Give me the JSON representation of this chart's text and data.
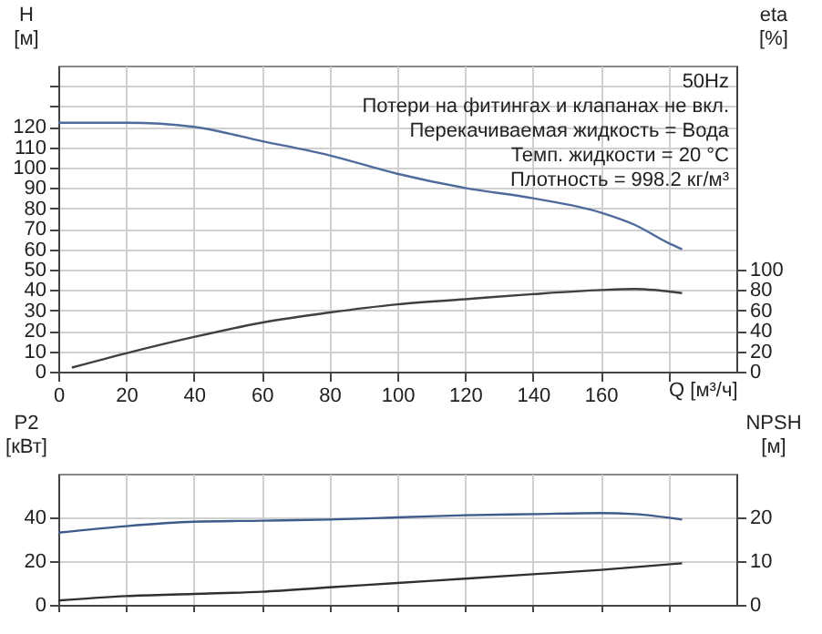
{
  "chart_data": [
    {
      "type": "line",
      "title": "50Hz",
      "annotations": [
        "Потери на фитингах и клапанах не вкл.",
        "Перекачиваемая жидкость = Вода",
        "Темп. жидкости = 20 °C",
        "Плотность = 998.2 кг/м³"
      ],
      "xlabel": "Q [м³/ч]",
      "ylabel": "H [м]",
      "y2label": "eta [%]",
      "xlim": [
        0,
        200
      ],
      "xticks": [
        0,
        20,
        40,
        60,
        80,
        100,
        120,
        140,
        160,
        {
          "value": 180,
          "label": null
        }
      ],
      "ylim": [
        0,
        150
      ],
      "yticks": [
        0,
        10,
        20,
        30,
        40,
        50,
        60,
        70,
        80,
        90,
        100,
        110,
        120,
        {
          "value": 130,
          "label": null
        },
        {
          "value": 140,
          "label": null
        }
      ],
      "y2lim": [
        0,
        300
      ],
      "y2ticks": [
        0,
        20,
        40,
        60,
        80,
        100
      ],
      "grid": true,
      "legend": false,
      "line_style": "solid",
      "series": [
        {
          "color": "#4f6a9c",
          "x": [
            0,
            20,
            40,
            60,
            80,
            100,
            120,
            140,
            160,
            170,
            180,
            184
          ],
          "values": [
            122,
            122,
            120,
            113,
            106,
            97,
            90,
            85,
            78,
            72,
            63,
            60
          ]
        },
        {
          "color": "#404040",
          "axis": "y2",
          "x": [
            4,
            20,
            40,
            60,
            80,
            100,
            120,
            140,
            160,
            170,
            184
          ],
          "values": [
            4,
            18,
            34,
            48,
            58,
            66,
            71,
            76,
            80,
            81,
            77
          ]
        }
      ]
    },
    {
      "type": "line",
      "ylabel": "P2 [кВт]",
      "y2label": "NPSH [м]",
      "xlim": [
        0,
        200
      ],
      "xticks": [
        0,
        20,
        40,
        60,
        80,
        100,
        120,
        140,
        160,
        180
      ],
      "ylim": [
        0,
        60
      ],
      "yticks": [
        0,
        20,
        40
      ],
      "y2lim": [
        0,
        30
      ],
      "y2ticks": [
        0,
        10,
        20
      ],
      "tick_labels": "y",
      "grid": true,
      "legend": false,
      "line_style": "solid",
      "series": [
        {
          "color": "#3d5a8c",
          "x": [
            0,
            20,
            40,
            60,
            80,
            100,
            120,
            140,
            160,
            170,
            184
          ],
          "values": [
            33,
            36,
            38,
            38.5,
            39,
            40,
            41,
            41.5,
            42,
            41.5,
            39
          ]
        },
        {
          "color": "#303030",
          "axis": "y2",
          "x": [
            0,
            20,
            40,
            60,
            80,
            100,
            120,
            140,
            160,
            184
          ],
          "values": [
            1,
            2,
            2.5,
            3,
            4,
            5,
            6,
            7,
            8,
            9.5
          ]
        }
      ]
    }
  ]
}
